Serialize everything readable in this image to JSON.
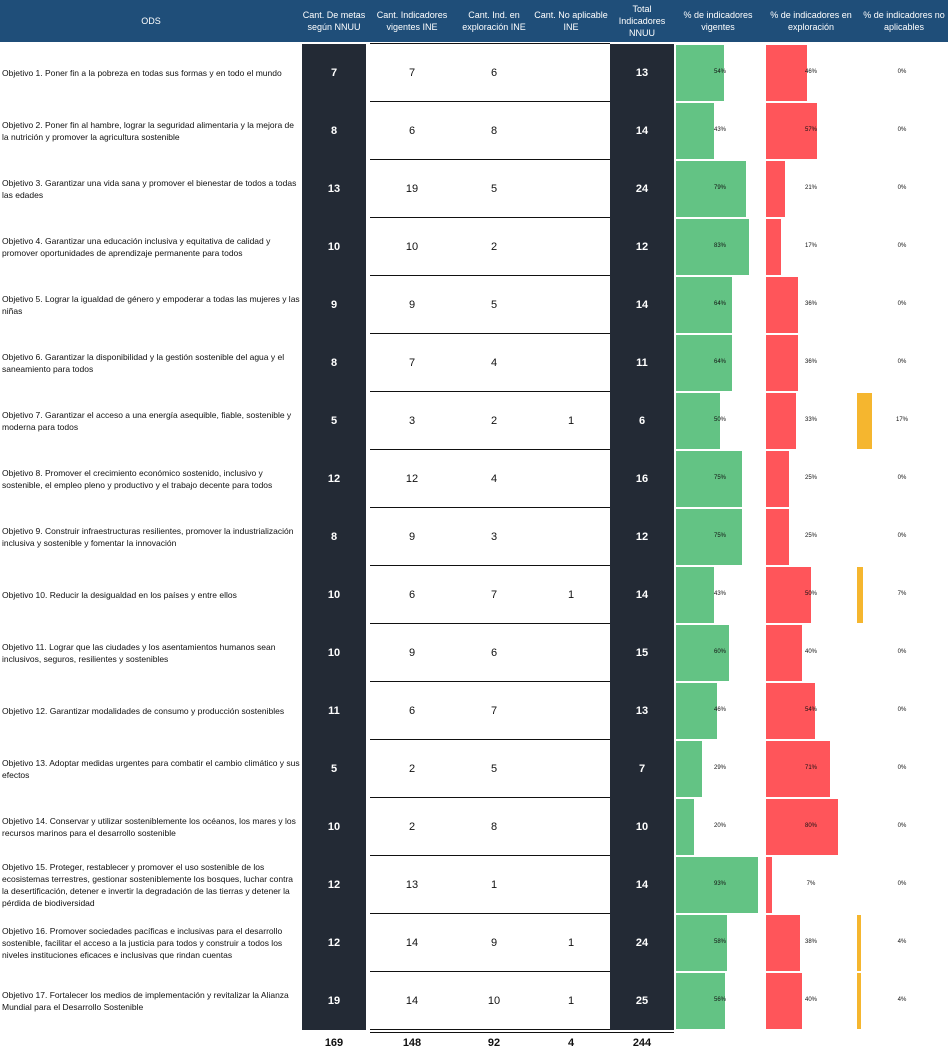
{
  "headers": {
    "ods": "ODS",
    "metas": "Cant. De metas según NNUU",
    "vigentes": "Cant. Indicadores vigentes INE",
    "exploracion": "Cant. Ind. en exploración INE",
    "no_aplicable": "Cant. No aplicable INE",
    "total": "Total Indicadores NNUU",
    "pct_vigentes": "% de indicadores vigentes",
    "pct_exploracion": "% de indicadores en exploración",
    "pct_no_aplicables": "% de indicadores no aplicables"
  },
  "colors": {
    "header_bg": "#1f4e79",
    "dark_column": "#232a35",
    "vigentes_bar": "#63c384",
    "exploracion_bar": "#ff555a",
    "no_aplicable_bar": "#f5b62f"
  },
  "rows": [
    {
      "objetivo": "Objetivo 1. Poner fin a la pobreza en todas sus formas y en todo el mundo",
      "metas": "7",
      "vigentes": "7",
      "exploracion": "6",
      "no_aplicable": "",
      "total": "13",
      "pct_vig": "54%",
      "pct_exp": "46%",
      "pct_na": "0%",
      "v_vig": 54,
      "v_exp": 46,
      "v_na": 0
    },
    {
      "objetivo": "Objetivo 2. Poner fin al hambre, lograr la seguridad alimentaria y la mejora de la nutrición y promover la agricultura sostenible",
      "metas": "8",
      "vigentes": "6",
      "exploracion": "8",
      "no_aplicable": "",
      "total": "14",
      "pct_vig": "43%",
      "pct_exp": "57%",
      "pct_na": "0%",
      "v_vig": 43,
      "v_exp": 57,
      "v_na": 0
    },
    {
      "objetivo": "Objetivo 3. Garantizar una vida sana y promover el bienestar de todos a todas las edades",
      "metas": "13",
      "vigentes": "19",
      "exploracion": "5",
      "no_aplicable": "",
      "total": "24",
      "pct_vig": "79%",
      "pct_exp": "21%",
      "pct_na": "0%",
      "v_vig": 79,
      "v_exp": 21,
      "v_na": 0
    },
    {
      "objetivo": "Objetivo 4. Garantizar una educación inclusiva y equitativa de calidad y promover oportunidades de aprendizaje permanente para todos",
      "metas": "10",
      "vigentes": "10",
      "exploracion": "2",
      "no_aplicable": "",
      "total": "12",
      "pct_vig": "83%",
      "pct_exp": "17%",
      "pct_na": "0%",
      "v_vig": 83,
      "v_exp": 17,
      "v_na": 0
    },
    {
      "objetivo": "Objetivo 5. Lograr la igualdad de género y empoderar a todas las mujeres y las niñas",
      "metas": "9",
      "vigentes": "9",
      "exploracion": "5",
      "no_aplicable": "",
      "total": "14",
      "pct_vig": "64%",
      "pct_exp": "36%",
      "pct_na": "0%",
      "v_vig": 64,
      "v_exp": 36,
      "v_na": 0
    },
    {
      "objetivo": "Objetivo 6. Garantizar la disponibilidad y la gestión sostenible del agua y el saneamiento para todos",
      "metas": "8",
      "vigentes": "7",
      "exploracion": "4",
      "no_aplicable": "",
      "total": "11",
      "pct_vig": "64%",
      "pct_exp": "36%",
      "pct_na": "0%",
      "v_vig": 64,
      "v_exp": 36,
      "v_na": 0
    },
    {
      "objetivo": "Objetivo 7. Garantizar el acceso a una energía asequible, fiable, sostenible y moderna para todos",
      "metas": "5",
      "vigentes": "3",
      "exploracion": "2",
      "no_aplicable": "1",
      "total": "6",
      "pct_vig": "50%",
      "pct_exp": "33%",
      "pct_na": "17%",
      "v_vig": 50,
      "v_exp": 33,
      "v_na": 17
    },
    {
      "objetivo": "Objetivo 8. Promover el crecimiento económico sostenido, inclusivo y sostenible, el empleo pleno y productivo y el trabajo decente para todos",
      "metas": "12",
      "vigentes": "12",
      "exploracion": "4",
      "no_aplicable": "",
      "total": "16",
      "pct_vig": "75%",
      "pct_exp": "25%",
      "pct_na": "0%",
      "v_vig": 75,
      "v_exp": 25,
      "v_na": 0
    },
    {
      "objetivo": "Objetivo 9. Construir infraestructuras resilientes, promover la industrialización inclusiva y sostenible y fomentar la innovación",
      "metas": "8",
      "vigentes": "9",
      "exploracion": "3",
      "no_aplicable": "",
      "total": "12",
      "pct_vig": "75%",
      "pct_exp": "25%",
      "pct_na": "0%",
      "v_vig": 75,
      "v_exp": 25,
      "v_na": 0
    },
    {
      "objetivo": "Objetivo 10. Reducir la desigualdad en los países y entre ellos",
      "metas": "10",
      "vigentes": "6",
      "exploracion": "7",
      "no_aplicable": "1",
      "total": "14",
      "pct_vig": "43%",
      "pct_exp": "50%",
      "pct_na": "7%",
      "v_vig": 43,
      "v_exp": 50,
      "v_na": 7
    },
    {
      "objetivo": "Objetivo 11. Lograr que las ciudades y los asentamientos humanos sean inclusivos, seguros, resilientes y sostenibles",
      "metas": "10",
      "vigentes": "9",
      "exploracion": "6",
      "no_aplicable": "",
      "total": "15",
      "pct_vig": "60%",
      "pct_exp": "40%",
      "pct_na": "0%",
      "v_vig": 60,
      "v_exp": 40,
      "v_na": 0
    },
    {
      "objetivo": "Objetivo 12. Garantizar modalidades de consumo y producción sostenibles",
      "metas": "11",
      "vigentes": "6",
      "exploracion": "7",
      "no_aplicable": "",
      "total": "13",
      "pct_vig": "46%",
      "pct_exp": "54%",
      "pct_na": "0%",
      "v_vig": 46,
      "v_exp": 54,
      "v_na": 0
    },
    {
      "objetivo": "Objetivo 13. Adoptar medidas urgentes para combatir el cambio climático y sus efectos",
      "metas": "5",
      "vigentes": "2",
      "exploracion": "5",
      "no_aplicable": "",
      "total": "7",
      "pct_vig": "29%",
      "pct_exp": "71%",
      "pct_na": "0%",
      "v_vig": 29,
      "v_exp": 71,
      "v_na": 0
    },
    {
      "objetivo": "Objetivo 14. Conservar y utilizar sosteniblemente los océanos, los mares y los recursos marinos para el desarrollo sostenible",
      "metas": "10",
      "vigentes": "2",
      "exploracion": "8",
      "no_aplicable": "",
      "total": "10",
      "pct_vig": "20%",
      "pct_exp": "80%",
      "pct_na": "0%",
      "v_vig": 20,
      "v_exp": 80,
      "v_na": 0
    },
    {
      "objetivo": "Objetivo 15. Proteger, restablecer y promover el uso sostenible de los ecosistemas terrestres, gestionar sosteniblemente los bosques, luchar contra la desertificación, detener e invertir la degradación de las tierras y detener la pérdida de biodiversidad",
      "metas": "12",
      "vigentes": "13",
      "exploracion": "1",
      "no_aplicable": "",
      "total": "14",
      "pct_vig": "93%",
      "pct_exp": "7%",
      "pct_na": "0%",
      "v_vig": 93,
      "v_exp": 7,
      "v_na": 0
    },
    {
      "objetivo": "Objetivo 16. Promover sociedades pacíficas e inclusivas para el desarrollo sostenible, facilitar el acceso a la justicia para todos y construir a todos los niveles instituciones eficaces e inclusivas que rindan cuentas",
      "metas": "12",
      "vigentes": "14",
      "exploracion": "9",
      "no_aplicable": "1",
      "total": "24",
      "pct_vig": "58%",
      "pct_exp": "38%",
      "pct_na": "4%",
      "v_vig": 58,
      "v_exp": 38,
      "v_na": 4
    },
    {
      "objetivo": "Objetivo 17. Fortalecer los medios de implementación y revitalizar la Alianza Mundial para el Desarrollo Sostenible",
      "metas": "19",
      "vigentes": "14",
      "exploracion": "10",
      "no_aplicable": "1",
      "total": "25",
      "pct_vig": "56%",
      "pct_exp": "40%",
      "pct_na": "4%",
      "v_vig": 56,
      "v_exp": 40,
      "v_na": 4
    }
  ],
  "totals": {
    "metas": "169",
    "vigentes": "148",
    "exploracion": "92",
    "no_aplicable": "4",
    "total": "244"
  }
}
